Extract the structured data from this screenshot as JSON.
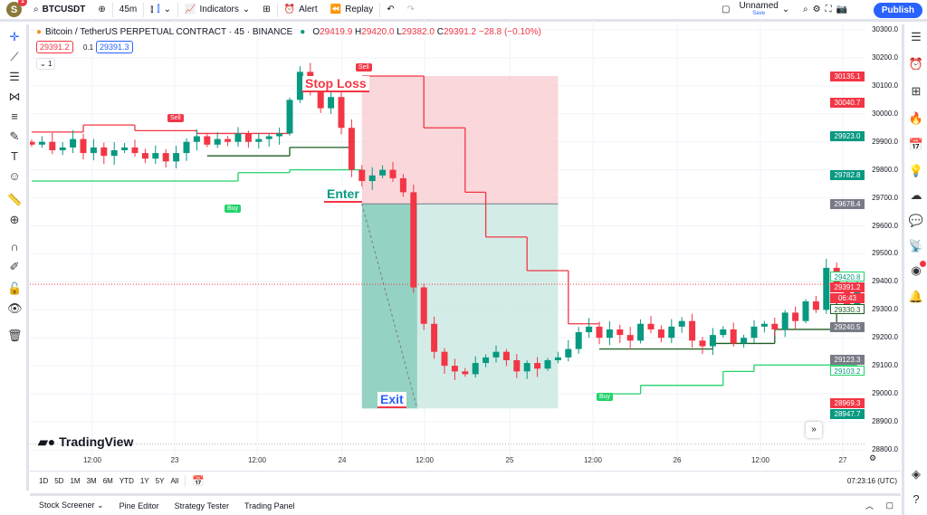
{
  "topbar": {
    "avatar": "S",
    "notif": "1",
    "symbol": "BTCUSDT",
    "interval": "45m",
    "indicators": "Indicators",
    "alert": "Alert",
    "replay": "Replay",
    "layout_name": "Unnamed",
    "layout_sub": "Save",
    "publish": "Publish"
  },
  "legend": {
    "title": "Bitcoin / TetherUS PERPETUAL CONTRACT · 45 · BINANCE",
    "o_label": "O",
    "o": "29419.9",
    "h_label": "H",
    "h": "29420.0",
    "l_label": "L",
    "l": "29382.0",
    "c_label": "C",
    "c": "29391.2",
    "change": "−28.8 (−0.10%)",
    "bid": "29391.2",
    "spread": "0.1",
    "ask": "29391.3",
    "collapse": "1"
  },
  "colors": {
    "up": "#089981",
    "down": "#f23645",
    "accent": "#2962ff",
    "risk": "#f8cdd1",
    "reward": "#cce9e3"
  },
  "chart_data": {
    "type": "candlestick",
    "ylim": [
      28750,
      30320
    ],
    "price_ticks": [
      "30300.0",
      "30200.0",
      "30100.0",
      "30000.0",
      "29900.0",
      "29800.0",
      "29700.0",
      "29600.0",
      "29500.0",
      "29400.0",
      "29300.0",
      "29200.0",
      "29100.0",
      "29000.0",
      "28900.0",
      "28800.0"
    ],
    "time_ticks": [
      "12:00",
      "23",
      "12:00",
      "24",
      "12:00",
      "25",
      "12:00",
      "26",
      "12:00",
      "27"
    ],
    "closes": [
      29890,
      29900,
      29870,
      29880,
      29910,
      29860,
      29880,
      29850,
      29870,
      29880,
      29860,
      29840,
      29860,
      29830,
      29860,
      29900,
      29920,
      29890,
      29910,
      29900,
      29930,
      29900,
      29910,
      29920,
      29930,
      30050,
      30150,
      30080,
      30020,
      30060,
      29950,
      29800,
      29760,
      29780,
      29800,
      29770,
      29720,
      29380,
      29250,
      29150,
      29100,
      29080,
      29070,
      29110,
      29130,
      29150,
      29120,
      29080,
      29110,
      29090,
      29120,
      29130,
      29160,
      29220,
      29240,
      29200,
      29230,
      29210,
      29190,
      29250,
      29230,
      29200,
      29240,
      29260,
      29190,
      29170,
      29210,
      29230,
      29180,
      29200,
      29240,
      29250,
      29230,
      29290,
      29260,
      29330,
      29300,
      29450,
      29380,
      29320,
      29391.2
    ],
    "supertrend_red": [
      [
        0,
        5,
        29935
      ],
      [
        5,
        10,
        29960
      ],
      [
        10,
        16,
        29940
      ],
      [
        16,
        25,
        29930
      ],
      [
        32,
        38,
        30135
      ],
      [
        38,
        42,
        29950
      ],
      [
        42,
        44,
        29720
      ],
      [
        44,
        48,
        29560
      ],
      [
        48,
        52,
        29440
      ],
      [
        52,
        55,
        29250
      ]
    ],
    "supertrend_green": [
      [
        0,
        20,
        29760
      ],
      [
        20,
        25,
        29790
      ],
      [
        25,
        32,
        29800
      ],
      [
        55,
        59,
        29000
      ],
      [
        59,
        67,
        29030
      ],
      [
        67,
        70,
        29080
      ],
      [
        70,
        80,
        29103
      ]
    ],
    "trend_dark": [
      [
        17,
        25,
        29850
      ],
      [
        25,
        31,
        29880
      ],
      [
        55,
        66,
        29160
      ],
      [
        66,
        72,
        29180
      ],
      [
        72,
        78,
        29230
      ],
      [
        78,
        80,
        29330
      ]
    ],
    "position": {
      "stop": 30135.1,
      "entry": 29678.4,
      "target": 28947.7,
      "entry_bar": 32,
      "exit_bar": 37,
      "end_bar": 51
    },
    "price_tags": [
      {
        "v": "30135.1",
        "p": 30135.1,
        "c": "#f23645"
      },
      {
        "v": "30040.7",
        "p": 30040.7,
        "c": "#f23645"
      },
      {
        "v": "29923.0",
        "p": 29923,
        "c": "#089981"
      },
      {
        "v": "29782.8",
        "p": 29782.8,
        "c": "#089981"
      },
      {
        "v": "29678.4",
        "p": 29678.4,
        "c": "#787b86"
      },
      {
        "v": "29420.8",
        "p": 29420.8,
        "c": "outline-green"
      },
      {
        "v": "29391.2",
        "p": 29391.2,
        "c": "#f23645"
      },
      {
        "v": "06:43",
        "p": 29360,
        "c": "#f23645"
      },
      {
        "v": "29330.3",
        "p": 29330.3,
        "c": "outline-dark"
      },
      {
        "v": "29240.5",
        "p": 29240.5,
        "c": "#787b86"
      },
      {
        "v": "29123.3",
        "p": 29123.3,
        "c": "#787b86"
      },
      {
        "v": "29103.2",
        "p": 29103.2,
        "c": "outline-green"
      },
      {
        "v": "28969.3",
        "p": 28969.3,
        "c": "#f23645"
      },
      {
        "v": "28947.7",
        "p": 28947.7,
        "c": "#089981"
      }
    ],
    "annotations": {
      "stop_loss": "Stop Loss",
      "enter": "Enter",
      "exit": "Exit",
      "sell": "Sell",
      "buy": "Buy"
    }
  },
  "watermark": "TradingView",
  "ranges": [
    "1D",
    "5D",
    "1M",
    "3M",
    "6M",
    "YTD",
    "1Y",
    "5Y",
    "All"
  ],
  "clock": "07:23:16 (UTC)",
  "bottom_tabs": [
    "Stock Screener",
    "Pine Editor",
    "Strategy Tester",
    "Trading Panel"
  ]
}
